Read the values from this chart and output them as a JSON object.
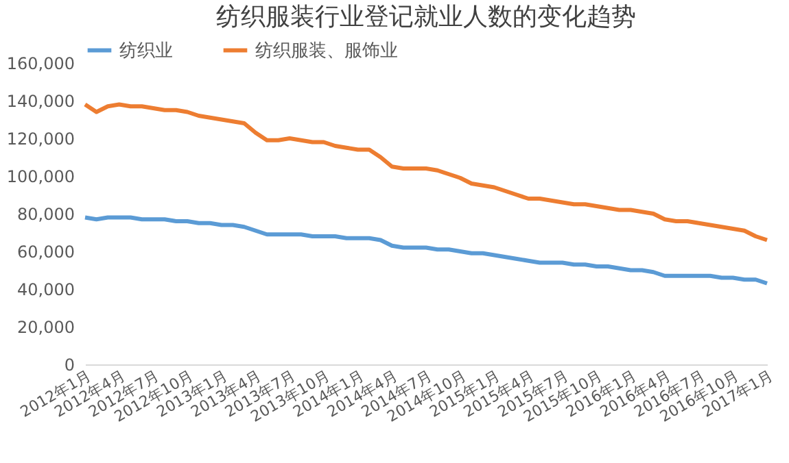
{
  "chart_data": {
    "type": "line",
    "title": "纺织服装行业登记就业人数的变化趋势",
    "categories": [
      "2012年1月",
      null,
      null,
      "2012年4月",
      null,
      null,
      "2012年7月",
      null,
      null,
      "2012年10月",
      null,
      null,
      "2013年1月",
      null,
      null,
      "2013年4月",
      null,
      null,
      "2013年7月",
      null,
      null,
      "2013年10月",
      null,
      null,
      "2014年1月",
      null,
      null,
      "2014年4月",
      null,
      null,
      "2014年7月",
      null,
      null,
      "2014年10月",
      null,
      null,
      "2015年1月",
      null,
      null,
      "2015年4月",
      null,
      null,
      "2015年7月",
      null,
      null,
      "2015年10月",
      null,
      null,
      "2016年1月",
      null,
      null,
      "2016年4月",
      null,
      null,
      "2016年7月",
      null,
      null,
      "2016年10月",
      null,
      null,
      "2017年1月"
    ],
    "series": [
      {
        "name": "纺织业",
        "color": "#5b9bd5",
        "values": [
          78000,
          77000,
          78000,
          78000,
          78000,
          77000,
          77000,
          77000,
          76000,
          76000,
          75000,
          75000,
          74000,
          74000,
          73000,
          71000,
          69000,
          69000,
          69000,
          69000,
          68000,
          68000,
          68000,
          67000,
          67000,
          67000,
          66000,
          63000,
          62000,
          62000,
          62000,
          61000,
          61000,
          60000,
          59000,
          59000,
          58000,
          57000,
          56000,
          55000,
          54000,
          54000,
          54000,
          53000,
          53000,
          52000,
          52000,
          51000,
          50000,
          50000,
          49000,
          47000,
          47000,
          47000,
          47000,
          47000,
          46000,
          46000,
          45000,
          45000,
          43000
        ]
      },
      {
        "name": "纺织服装、服饰业",
        "color": "#ed7d31",
        "values": [
          138000,
          134000,
          137000,
          138000,
          137000,
          137000,
          136000,
          135000,
          135000,
          134000,
          132000,
          131000,
          130000,
          129000,
          128000,
          123000,
          119000,
          119000,
          120000,
          119000,
          118000,
          118000,
          116000,
          115000,
          114000,
          114000,
          110000,
          105000,
          104000,
          104000,
          104000,
          103000,
          101000,
          99000,
          96000,
          95000,
          94000,
          92000,
          90000,
          88000,
          88000,
          87000,
          86000,
          85000,
          85000,
          84000,
          83000,
          82000,
          82000,
          81000,
          80000,
          77000,
          76000,
          76000,
          75000,
          74000,
          73000,
          72000,
          71000,
          68000,
          66000
        ]
      }
    ],
    "ylim": [
      0,
      160000
    ],
    "yticks": [
      0,
      {
        "value": 20000,
        "label": "20,000"
      },
      {
        "value": 40000,
        "label": "40,000"
      },
      {
        "value": 60000,
        "label": "60,000"
      },
      {
        "value": 80000,
        "label": "80,000"
      },
      {
        "value": 100000,
        "label": "100,000"
      },
      {
        "value": 120000,
        "label": "120,000"
      },
      {
        "value": 140000,
        "label": "140,000"
      },
      {
        "value": 160000,
        "label": "160,000"
      }
    ],
    "legend": "top",
    "grid": false
  }
}
